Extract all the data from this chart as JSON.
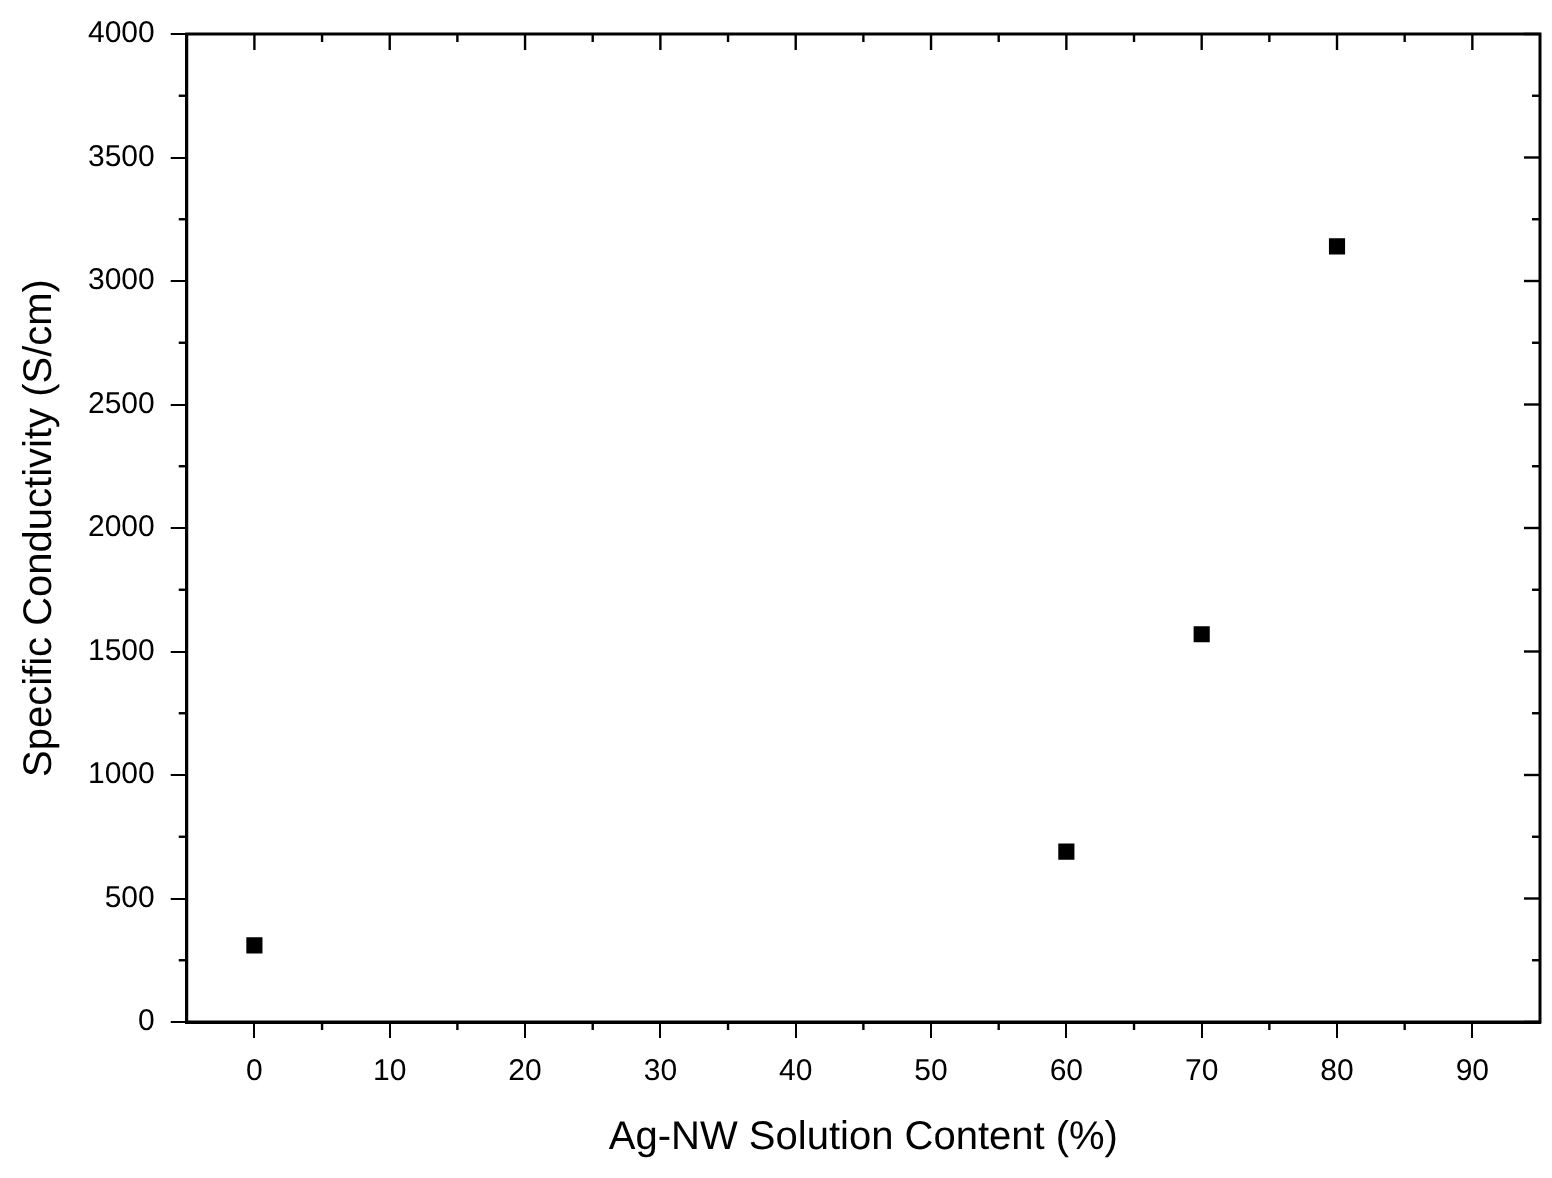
{
  "chart_data": {
    "type": "scatter",
    "xlabel": "Ag-NW Solution Content (%)",
    "ylabel": "Specific Conductivity (S/cm)",
    "x": [
      0,
      60,
      70,
      80
    ],
    "series": [
      {
        "color": "#000000",
        "values": [
          310,
          690,
          1570,
          3140
        ]
      }
    ],
    "xlim": [
      -5,
      95
    ],
    "xticks": [
      0,
      10,
      20,
      30,
      40,
      50,
      60,
      70,
      80,
      90
    ],
    "ylim": [
      0,
      4000
    ],
    "yticks": [
      0,
      500,
      1000,
      1500,
      2000,
      2500,
      3000,
      3500,
      4000
    ],
    "marker": "square",
    "grid": false,
    "legend": false
  }
}
